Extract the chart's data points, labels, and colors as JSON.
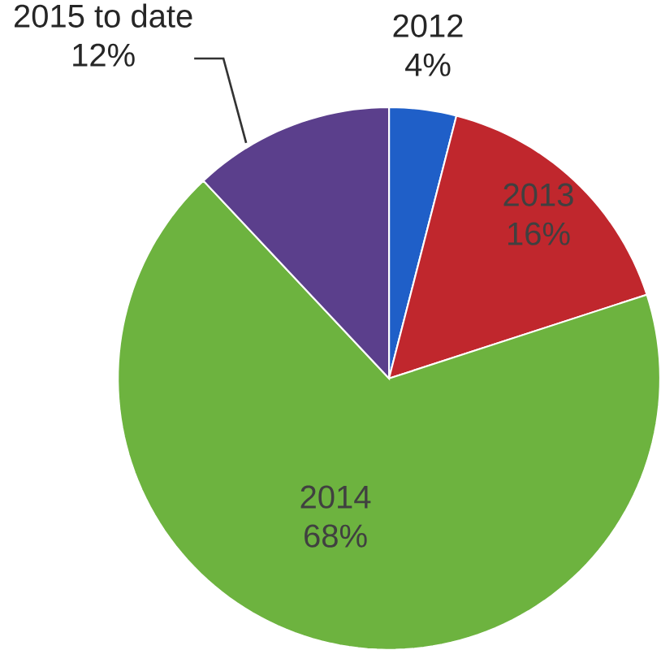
{
  "chart_data": {
    "type": "pie",
    "categories": [
      "2012",
      "2013",
      "2014",
      "2015 to date"
    ],
    "values": [
      4,
      16,
      68,
      12
    ],
    "value_labels": [
      "4%",
      "16%",
      "68%",
      "12%"
    ],
    "colors": [
      "#1f5fc8",
      "#c0272d",
      "#6db33f",
      "#5b3f8c"
    ]
  }
}
